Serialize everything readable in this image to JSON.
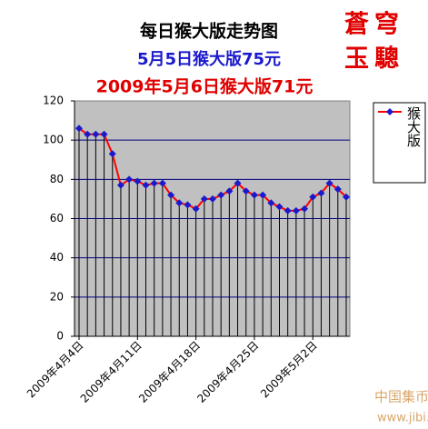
{
  "chart_data": {
    "type": "line",
    "title": "每日猴大版走势图",
    "subtitle": "5月5日猴大版75元",
    "subtitle2": "2009年5月6日猴大版71元",
    "stamp": [
      "蒼穹",
      "玉驄"
    ],
    "watermark": [
      "中国集币在线",
      "www.jibi.net"
    ],
    "categories": [
      "2009年4月4日",
      null,
      null,
      null,
      null,
      null,
      null,
      "2009年4月11日",
      null,
      null,
      null,
      null,
      null,
      null,
      "2009年4月18日",
      null,
      null,
      null,
      null,
      null,
      null,
      "2009年4月25日",
      null,
      null,
      null,
      null,
      null,
      null,
      "2009年5月2日",
      null,
      null,
      null,
      null
    ],
    "series": [
      {
        "name": "猴大版",
        "color": "#ff0000",
        "marker_color": "#1a1acc",
        "values": [
          106,
          103,
          103,
          103,
          93,
          77,
          80,
          79,
          77,
          78,
          78,
          72,
          68,
          67,
          65,
          70,
          70,
          72,
          74,
          78,
          74,
          72,
          72,
          68,
          66,
          64,
          64,
          65,
          71,
          73,
          78,
          75,
          71
        ]
      }
    ],
    "ylim": [
      0,
      120
    ],
    "yticks": [
      0,
      20,
      40,
      60,
      80,
      100,
      120
    ],
    "grid": true,
    "drop_lines": true,
    "legend": "right"
  }
}
